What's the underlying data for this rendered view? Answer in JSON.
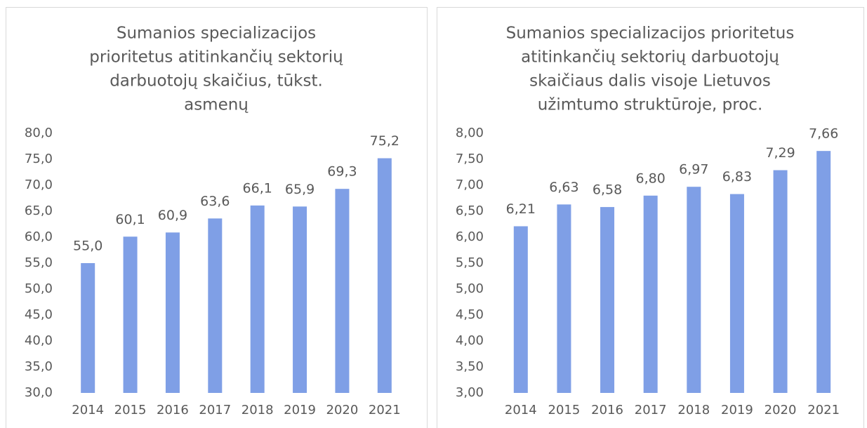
{
  "chart_data": [
    {
      "type": "bar",
      "title": [
        "Sumanios specializacijos",
        "prioritetus atitinkančių sektorių",
        "darbuotojų skaičius, tūkst.",
        "asmenų"
      ],
      "categories": [
        "2014",
        "2015",
        "2016",
        "2017",
        "2018",
        "2019",
        "2020",
        "2021"
      ],
      "values": [
        55.0,
        60.1,
        60.9,
        63.6,
        66.1,
        65.9,
        69.3,
        75.2
      ],
      "value_labels": [
        "55,0",
        "60,1",
        "60,9",
        "63,6",
        "66,1",
        "65,9",
        "69,3",
        "75,2"
      ],
      "color": "#7f9fe6",
      "ylim": [
        30,
        80
      ],
      "yticks": [
        {
          "value": 30,
          "label": "30,0"
        },
        {
          "value": 35,
          "label": "35,0"
        },
        {
          "value": 40,
          "label": "40,0"
        },
        {
          "value": 45,
          "label": "45,0"
        },
        {
          "value": 50,
          "label": "50,0"
        },
        {
          "value": 55,
          "label": "55,0"
        },
        {
          "value": 60,
          "label": "60,0"
        },
        {
          "value": 65,
          "label": "65,0"
        },
        {
          "value": 70,
          "label": "70,0"
        },
        {
          "value": 75,
          "label": "75,0"
        },
        {
          "value": 80,
          "label": "80,0"
        }
      ],
      "grid": false
    },
    {
      "type": "bar",
      "title": [
        "Sumanios specializacijos prioritetus",
        "atitinkančių sektorių darbuotojų",
        "skaičiaus dalis visoje Lietuvos",
        "užimtumo struktūroje, proc."
      ],
      "categories": [
        "2014",
        "2015",
        "2016",
        "2017",
        "2018",
        "2019",
        "2020",
        "2021"
      ],
      "values": [
        6.21,
        6.63,
        6.58,
        6.8,
        6.97,
        6.83,
        7.29,
        7.66
      ],
      "value_labels": [
        "6,21",
        "6,63",
        "6,58",
        "6,80",
        "6,97",
        "6,83",
        "7,29",
        "7,66"
      ],
      "color": "#7f9fe6",
      "ylim": [
        3,
        8
      ],
      "yticks": [
        {
          "value": 3,
          "label": "3,00"
        },
        {
          "value": 3.5,
          "label": "3,50"
        },
        {
          "value": 4,
          "label": "4,00"
        },
        {
          "value": 4.5,
          "label": "4,50"
        },
        {
          "value": 5,
          "label": "5,00"
        },
        {
          "value": 5.5,
          "label": "5,50"
        },
        {
          "value": 6,
          "label": "6,00"
        },
        {
          "value": 6.5,
          "label": "6,50"
        },
        {
          "value": 7,
          "label": "7,00"
        },
        {
          "value": 7.5,
          "label": "7,50"
        },
        {
          "value": 8,
          "label": "8,00"
        }
      ],
      "grid": false
    }
  ]
}
